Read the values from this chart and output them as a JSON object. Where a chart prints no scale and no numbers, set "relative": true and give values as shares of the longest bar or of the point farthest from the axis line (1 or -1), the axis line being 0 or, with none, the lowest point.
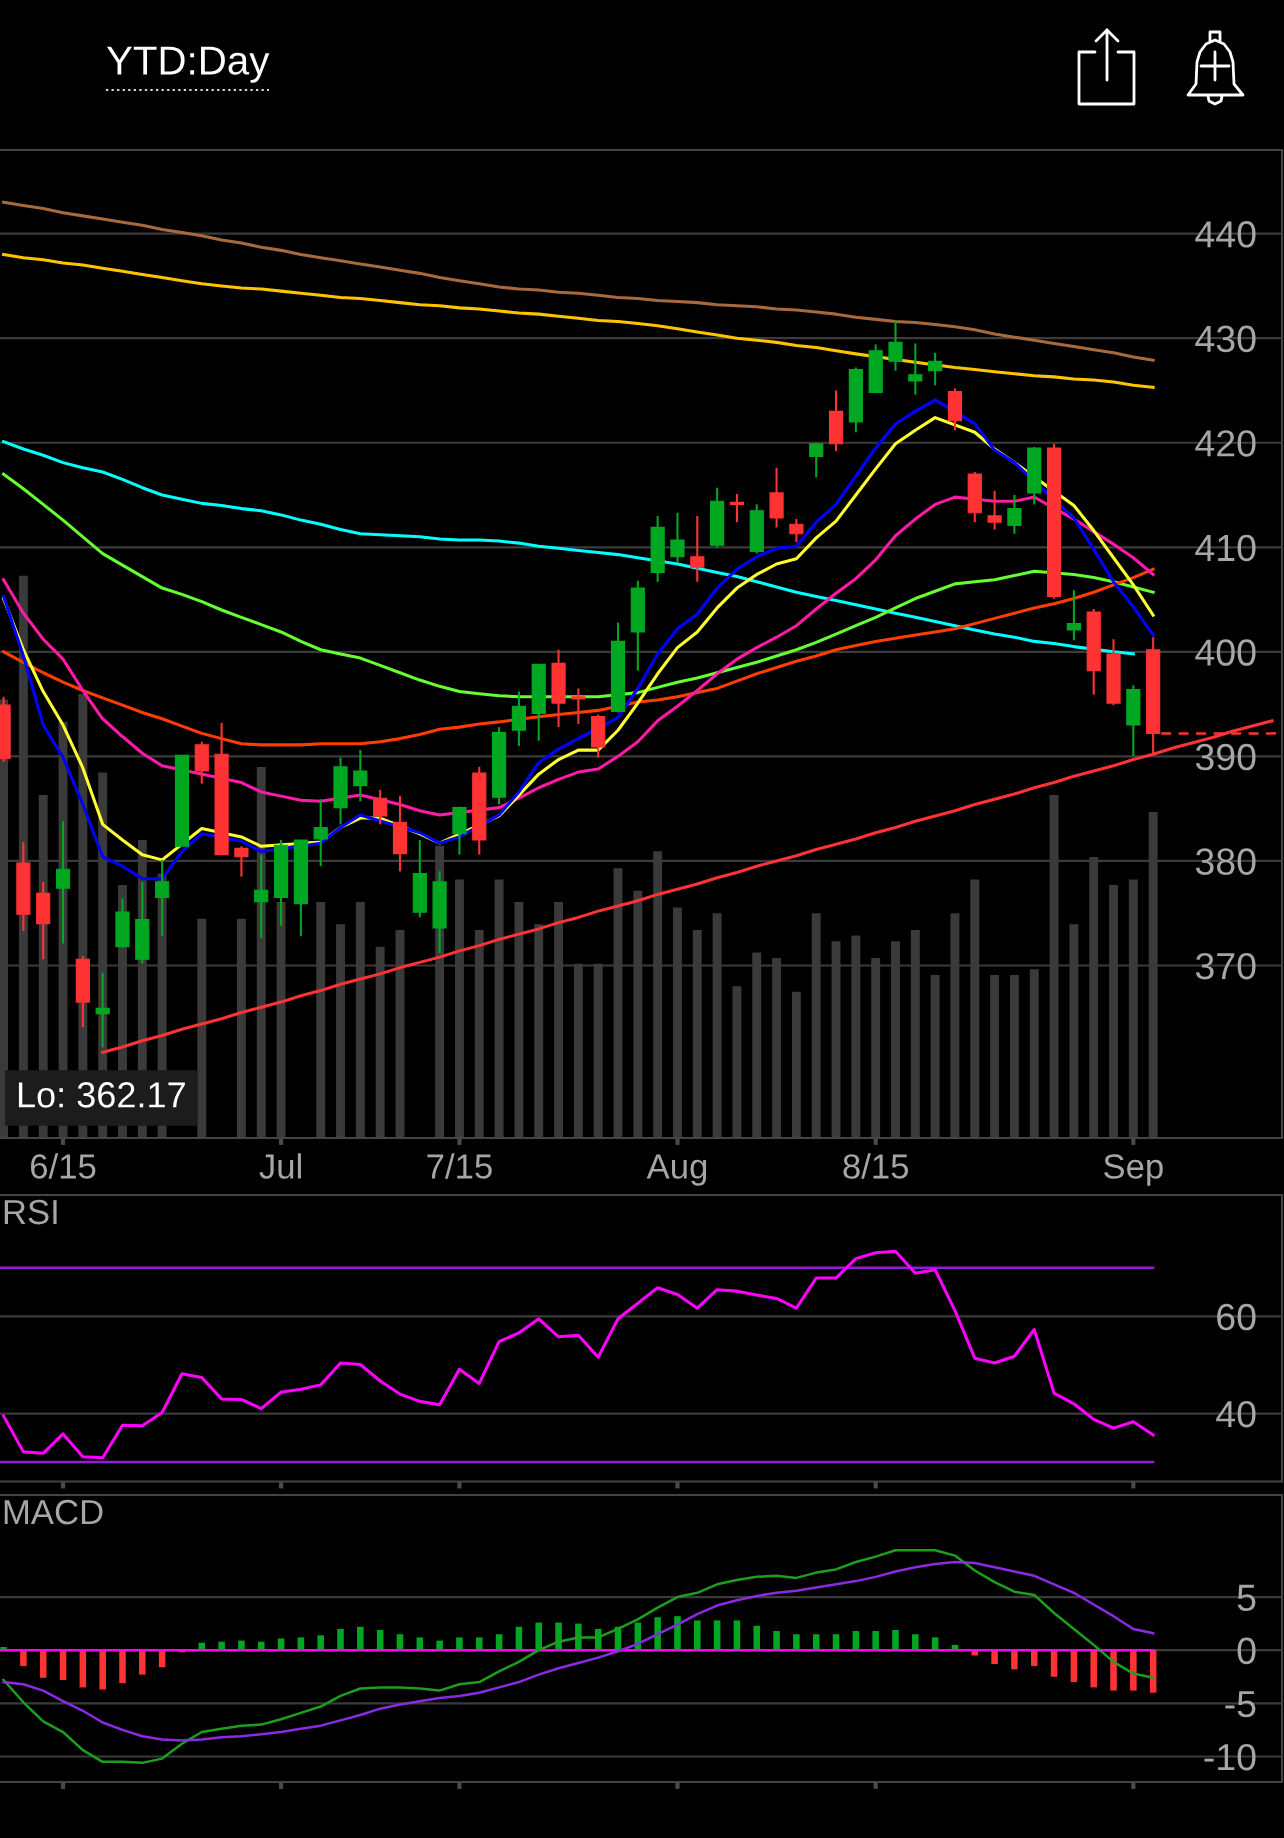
{
  "chart_data": [
    {
      "type": "candlestick",
      "title": "YTD:Day",
      "categories": [
        null,
        null,
        null,
        "6/15",
        null,
        null,
        null,
        null,
        null,
        null,
        null,
        null,
        null,
        null,
        "Jul",
        null,
        null,
        null,
        null,
        null,
        null,
        null,
        null,
        "7/15",
        null,
        null,
        null,
        null,
        null,
        null,
        null,
        null,
        null,
        null,
        "Aug",
        null,
        null,
        null,
        null,
        null,
        null,
        null,
        null,
        null,
        "8/15",
        null,
        null,
        null,
        null,
        null,
        null,
        null,
        null,
        null,
        null,
        null,
        null,
        "Sep",
        null,
        null,
        null,
        null,
        null,
        null,
        null
      ],
      "ohlc": [
        [
          394.9,
          395.7,
          389.5,
          389.8
        ],
        [
          379.8,
          381.8,
          373.3,
          374.9
        ],
        [
          376.9,
          378.0,
          370.6,
          374.0
        ],
        [
          377.4,
          383.8,
          372.1,
          379.2
        ],
        [
          370.6,
          370.9,
          364.1,
          366.5
        ],
        [
          365.4,
          369.3,
          362.17,
          365.9
        ],
        [
          371.8,
          376.4,
          371.7,
          375.1
        ],
        [
          370.6,
          378.0,
          370.2,
          374.4
        ],
        [
          376.5,
          380.1,
          372.8,
          378.0
        ],
        [
          381.4,
          390.1,
          381.4,
          390.1
        ],
        [
          391.1,
          391.4,
          387.4,
          388.6
        ],
        [
          390.2,
          393.2,
          380.6,
          380.6
        ],
        [
          381.2,
          381.4,
          378.5,
          380.4
        ],
        [
          376.1,
          380.6,
          372.6,
          377.2
        ],
        [
          376.5,
          382.0,
          373.8,
          381.5
        ],
        [
          375.9,
          382.0,
          372.8,
          382.0
        ],
        [
          382.1,
          385.9,
          379.5,
          383.2
        ],
        [
          385.1,
          389.9,
          383.5,
          389.0
        ],
        [
          387.2,
          390.6,
          385.7,
          388.6
        ],
        [
          386.0,
          386.8,
          383.5,
          384.3
        ],
        [
          383.7,
          386.2,
          379.0,
          380.7
        ],
        [
          375.1,
          382.0,
          374.6,
          378.8
        ],
        [
          373.6,
          379.0,
          371.2,
          378.0
        ],
        [
          382.6,
          385.2,
          380.6,
          385.1
        ],
        [
          388.4,
          389.0,
          380.6,
          382.0
        ],
        [
          386.1,
          392.8,
          385.4,
          392.3
        ],
        [
          392.5,
          396.2,
          391.0,
          394.8
        ],
        [
          394.1,
          398.8,
          391.5,
          398.8
        ],
        [
          398.9,
          400.2,
          392.8,
          395.1
        ],
        [
          395.7,
          396.5,
          393.1,
          395.5
        ],
        [
          393.8,
          394.0,
          389.9,
          390.9
        ],
        [
          394.3,
          402.8,
          394.2,
          401.0
        ],
        [
          401.9,
          406.8,
          398.2,
          406.1
        ],
        [
          407.6,
          413.0,
          406.7,
          411.9
        ],
        [
          409.1,
          413.3,
          408.5,
          410.7
        ],
        [
          409.1,
          413.0,
          406.7,
          408.1
        ],
        [
          410.2,
          415.7,
          410.0,
          414.4
        ],
        [
          414.3,
          415.1,
          412.4,
          414.1
        ],
        [
          409.6,
          414.1,
          409.4,
          413.5
        ],
        [
          415.2,
          417.6,
          411.9,
          412.8
        ],
        [
          412.2,
          412.7,
          410.5,
          411.3
        ],
        [
          418.7,
          420.0,
          416.7,
          419.9
        ],
        [
          423.0,
          425.0,
          419.2,
          419.9
        ],
        [
          422.0,
          427.2,
          421.0,
          427.0
        ],
        [
          424.8,
          429.4,
          424.8,
          428.8
        ],
        [
          427.8,
          431.7,
          426.9,
          429.6
        ],
        [
          425.9,
          429.5,
          424.6,
          426.5
        ],
        [
          426.9,
          428.6,
          425.5,
          427.8
        ],
        [
          424.9,
          425.2,
          421.2,
          422.1
        ],
        [
          417.0,
          417.2,
          412.4,
          413.3
        ],
        [
          413.0,
          415.4,
          411.7,
          412.4
        ],
        [
          412.1,
          415.0,
          411.3,
          413.7
        ],
        [
          415.2,
          419.6,
          414.1,
          419.5
        ],
        [
          419.5,
          419.9,
          405.1,
          405.3
        ],
        [
          402.1,
          405.9,
          401.1,
          402.7
        ],
        [
          403.8,
          404.1,
          395.9,
          398.2
        ],
        [
          399.8,
          401.2,
          394.9,
          395.1
        ],
        [
          393.0,
          396.8,
          390.0,
          396.4
        ],
        [
          400.2,
          401.4,
          390.3,
          392.2
        ],
        null,
        null,
        null,
        null,
        null,
        null
      ],
      "colors": [
        "#ff3333",
        "#ff3333",
        "#ff3333",
        "#00a822",
        "#ff3333",
        "#00a822",
        "#00a822",
        "#00a822",
        "#00a822",
        "#00a822",
        "#ff3333",
        "#ff3333",
        "#ff3333",
        "#00a822",
        "#00a822",
        "#00a822",
        "#00a822",
        "#00a822",
        "#00a822",
        "#ff3333",
        "#ff3333",
        "#00a822",
        "#00a822",
        "#00a822",
        "#ff3333",
        "#00a822",
        "#00a822",
        "#00a822",
        "#ff3333",
        "#ff3333",
        "#ff3333",
        "#00a822",
        "#00a822",
        "#00a822",
        "#00a822",
        "#ff3333",
        "#00a822",
        "#ff3333",
        "#00a822",
        "#ff3333",
        "#ff3333",
        "#00a822",
        "#ff3333",
        "#00a822",
        "#00a822",
        "#00a822",
        "#00a822",
        "#00a822",
        "#ff3333",
        "#ff3333",
        "#ff3333",
        "#00a822",
        "#00a822",
        "#ff3333",
        "#00a822",
        "#ff3333",
        "#ff3333",
        "#00a822",
        "#ff3333",
        null,
        null,
        null,
        null,
        null,
        null
      ],
      "series": [
        {
          "type": "line",
          "color": "#a86a3d",
          "values": [
            443.0,
            442.7,
            442.4,
            442.0,
            441.7,
            441.4,
            441.1,
            440.8,
            440.4,
            440.1,
            439.8,
            439.4,
            439.1,
            438.7,
            438.4,
            438.0,
            437.7,
            437.4,
            437.1,
            436.8,
            436.5,
            436.2,
            435.8,
            435.5,
            435.2,
            434.9,
            434.7,
            434.6,
            434.4,
            434.3,
            434.1,
            433.9,
            433.8,
            433.6,
            433.5,
            433.4,
            433.2,
            433.1,
            433.0,
            432.8,
            432.7,
            432.5,
            432.3,
            432.0,
            431.8,
            431.6,
            431.5,
            431.3,
            431.1,
            430.8,
            430.4,
            430.1,
            429.8,
            429.5,
            429.2,
            428.9,
            428.6,
            428.2,
            427.9,
            null,
            null,
            null,
            null,
            null,
            null
          ]
        },
        {
          "type": "line",
          "color": "#ffc400",
          "values": [
            438.0,
            437.7,
            437.5,
            437.2,
            437.0,
            436.7,
            436.4,
            436.1,
            435.8,
            435.5,
            435.2,
            435.0,
            434.8,
            434.7,
            434.5,
            434.3,
            434.1,
            433.9,
            433.8,
            433.6,
            433.4,
            433.2,
            433.1,
            432.9,
            432.8,
            432.6,
            432.4,
            432.3,
            432.1,
            431.9,
            431.7,
            431.6,
            431.4,
            431.2,
            430.9,
            430.6,
            430.3,
            430.0,
            429.8,
            429.6,
            429.3,
            429.1,
            428.8,
            428.5,
            null,
            null,
            427.7,
            null,
            427.2,
            427.0,
            426.8,
            426.6,
            426.4,
            426.3,
            426.1,
            426.0,
            425.8,
            425.5,
            425.3,
            null,
            null,
            null,
            null,
            null,
            null
          ]
        },
        {
          "type": "line",
          "color": "#00ffff",
          "values": [
            420.1,
            419.4,
            418.8,
            418.1,
            417.6,
            417.2,
            416.5,
            415.7,
            415.0,
            414.6,
            414.2,
            414.0,
            413.7,
            413.5,
            413.1,
            412.6,
            412.2,
            411.7,
            411.3,
            411.2,
            411.1,
            411.0,
            410.8,
            410.7,
            410.7,
            410.6,
            410.4,
            410.1,
            409.9,
            409.7,
            409.5,
            409.3,
            409.0,
            null,
            408.4,
            null,
            407.6,
            407.2,
            406.7,
            406.2,
            405.7,
            405.3,
            404.9,
            404.5,
            404.1,
            403.7,
            403.3,
            402.9,
            402.5,
            402.1,
            401.7,
            401.4,
            401.0,
            400.8,
            400.5,
            null,
            400.0,
            399.8,
            null,
            null,
            null,
            null,
            null,
            null,
            null
          ]
        },
        {
          "type": "line",
          "color": "#66ff33",
          "values": [
            417.0,
            415.6,
            414.1,
            412.6,
            411.0,
            409.4,
            408.3,
            407.2,
            406.1,
            405.5,
            404.8,
            404.0,
            403.3,
            402.6,
            401.9,
            401.0,
            400.2,
            399.8,
            399.4,
            398.7,
            398.0,
            397.3,
            396.7,
            396.2,
            396.0,
            395.8,
            395.7,
            null,
            null,
            null,
            395.7,
            null,
            396.1,
            396.6,
            397.1,
            397.5,
            398.0,
            398.5,
            399.0,
            399.6,
            400.2,
            400.9,
            401.7,
            402.5,
            403.3,
            404.2,
            405.1,
            405.8,
            406.5,
            406.7,
            406.9,
            407.3,
            407.7,
            null,
            407.4,
            407.1,
            406.7,
            406.2,
            405.7,
            null,
            null,
            null,
            null,
            null,
            null
          ]
        },
        {
          "type": "line",
          "color": "#ff3d00",
          "values": [
            400.0,
            399.0,
            398.0,
            397.1,
            396.3,
            395.6,
            394.9,
            394.2,
            393.6,
            392.9,
            392.2,
            391.7,
            391.2,
            391.1,
            391.1,
            391.1,
            391.2,
            391.2,
            391.2,
            391.4,
            391.7,
            392.1,
            392.6,
            392.8,
            393.1,
            393.3,
            null,
            393.8,
            394.0,
            394.2,
            394.4,
            null,
            395.2,
            395.4,
            395.7,
            396.1,
            396.5,
            397.2,
            397.9,
            398.5,
            399.1,
            399.6,
            400.2,
            400.6,
            401.0,
            401.3,
            401.6,
            401.9,
            402.2,
            402.7,
            403.2,
            403.7,
            404.2,
            404.6,
            405.1,
            405.7,
            406.4,
            407.1,
            407.9,
            null,
            null,
            null,
            null,
            null,
            null
          ]
        },
        {
          "type": "line",
          "color": "#ff1aa8",
          "values": [
            406.9,
            403.7,
            401.2,
            399.3,
            396.3,
            393.6,
            391.9,
            390.3,
            389.1,
            null,
            null,
            null,
            387.5,
            386.6,
            386.2,
            385.8,
            385.7,
            null,
            386.3,
            null,
            385.4,
            384.8,
            384.4,
            null,
            null,
            385.1,
            386.0,
            387.0,
            387.8,
            388.5,
            388.8,
            390.0,
            391.4,
            393.4,
            394.8,
            396.3,
            397.9,
            399.3,
            400.4,
            401.4,
            402.5,
            404.1,
            405.6,
            407.0,
            408.8,
            411.1,
            412.7,
            414.1,
            414.8,
            null,
            414.4,
            414.4,
            414.8,
            null,
            412.7,
            411.5,
            410.3,
            409.0,
            407.4,
            null,
            null,
            null,
            null,
            null,
            null
          ]
        },
        {
          "type": "line",
          "color": "#ffff33",
          "values": [
            405.1,
            400.2,
            396.2,
            393.0,
            388.9,
            383.5,
            382.0,
            380.6,
            380.1,
            null,
            383.1,
            null,
            382.3,
            381.4,
            null,
            null,
            381.8,
            383.2,
            384.1,
            384.1,
            null,
            382.6,
            381.7,
            null,
            null,
            384.3,
            386.3,
            388.3,
            389.7,
            390.6,
            390.6,
            392.5,
            395.1,
            397.9,
            400.4,
            401.9,
            404.2,
            406.1,
            407.4,
            408.4,
            408.9,
            410.9,
            412.5,
            415.0,
            417.5,
            419.9,
            421.2,
            422.4,
            null,
            421.0,
            419.4,
            418.1,
            null,
            null,
            414.0,
            411.6,
            409.0,
            406.4,
            403.5,
            null,
            null,
            null,
            null,
            null,
            null
          ]
        },
        {
          "type": "line",
          "color": "#0000ff",
          "values": [
            405.3,
            399.6,
            393.0,
            389.9,
            385.4,
            380.4,
            379.5,
            378.3,
            378.3,
            380.9,
            382.6,
            null,
            381.9,
            380.9,
            null,
            null,
            381.7,
            383.2,
            384.4,
            null,
            null,
            382.7,
            381.7,
            382.3,
            null,
            384.4,
            386.6,
            389.4,
            390.7,
            391.7,
            null,
            393.7,
            396.5,
            399.8,
            402.2,
            403.6,
            406.1,
            407.9,
            409.1,
            409.9,
            410.1,
            412.4,
            414.1,
            416.8,
            419.5,
            421.8,
            423.0,
            424.1,
            null,
            421.8,
            419.3,
            418.1,
            null,
            null,
            412.8,
            409.8,
            406.7,
            404.3,
            401.6,
            null,
            null,
            null,
            null,
            null,
            null
          ]
        },
        {
          "type": "line",
          "color": "#ff3333",
          "values": [
            null,
            null,
            null,
            null,
            null,
            361.7,
            362.2,
            362.8,
            363.3,
            363.9,
            364.4,
            364.9,
            365.5,
            366.0,
            366.5,
            367.1,
            367.6,
            368.2,
            368.7,
            369.2,
            369.8,
            370.3,
            370.8,
            371.4,
            371.9,
            372.5,
            373.0,
            373.5,
            374.1,
            374.6,
            375.2,
            375.7,
            376.2,
            376.8,
            377.3,
            377.8,
            378.4,
            378.9,
            379.5,
            380.0,
            380.5,
            381.1,
            381.6,
            382.1,
            382.7,
            383.2,
            383.8,
            384.3,
            384.8,
            385.4,
            385.9,
            386.4,
            387.0,
            387.5,
            388.1,
            388.6,
            389.1,
            389.7,
            390.2,
            390.8,
            391.3,
            391.8,
            392.4,
            392.9,
            393.4
          ]
        }
      ],
      "ylim": [
        353.5,
        448
      ],
      "yticks": [
        370,
        380,
        390,
        400,
        410,
        420,
        430,
        440
      ],
      "grid": "y",
      "annotations": [
        "Lo: 362.17"
      ],
      "ref_lines": [
        {
          "axis": "y",
          "value": 392.2,
          "color": "#ff3333",
          "line_style": "dashed"
        }
      ]
    },
    {
      "type": "bar",
      "relative": true,
      "color": "#3a3a3a",
      "categories": [
        null,
        null,
        null,
        null,
        null,
        null,
        null,
        null,
        null,
        null,
        null,
        null,
        null,
        null,
        null,
        null,
        null,
        null,
        null,
        null,
        null,
        null,
        null,
        null,
        null,
        null,
        null,
        null,
        null,
        null,
        null,
        null,
        null,
        null,
        null,
        null,
        null,
        null,
        null,
        null,
        null,
        null,
        null,
        null,
        null,
        null,
        null,
        null,
        null,
        null,
        null,
        null,
        null,
        null,
        null,
        null,
        null,
        null,
        null,
        null,
        null,
        null,
        null,
        null,
        null
      ],
      "values": [
        0.78,
        1.0,
        0.61,
        0.74,
        0.79,
        0.65,
        0.45,
        0.53,
        0.47,
        null,
        0.39,
        null,
        0.39,
        0.66,
        0.42,
        null,
        0.42,
        0.38,
        0.42,
        0.34,
        0.37,
        null,
        0.52,
        0.46,
        0.37,
        0.46,
        0.42,
        0.38,
        0.42,
        0.31,
        0.31,
        0.48,
        0.44,
        0.51,
        0.41,
        0.37,
        0.4,
        0.27,
        0.33,
        0.32,
        0.26,
        0.4,
        0.35,
        0.36,
        0.32,
        0.35,
        0.37,
        0.29,
        0.4,
        0.46,
        0.29,
        0.29,
        0.3,
        0.61,
        0.38,
        0.5,
        0.45,
        0.46,
        0.58,
        null,
        null,
        null,
        null,
        null,
        null
      ]
    },
    {
      "type": "line",
      "title": "RSI",
      "color": "#ff00ff",
      "categories": [
        null,
        null,
        null,
        null,
        null,
        null,
        null,
        null,
        null,
        null,
        null,
        null,
        null,
        null,
        null,
        null,
        null,
        null,
        null,
        null,
        null,
        null,
        null,
        null,
        null,
        null,
        null,
        null,
        null,
        null,
        null,
        null,
        null,
        null,
        null,
        null,
        null,
        null,
        null,
        null,
        null,
        null,
        null,
        null,
        null,
        null,
        null,
        null,
        null,
        null,
        null,
        null,
        null,
        null,
        null,
        null,
        null,
        null,
        null,
        null,
        null,
        null,
        null,
        null,
        null
      ],
      "values": [
        39.5,
        32.1,
        31.8,
        35.8,
        31.1,
        30.9,
        37.6,
        37.5,
        40.2,
        48.2,
        47.4,
        43.0,
        42.9,
        41.0,
        44.4,
        45.0,
        45.9,
        50.4,
        50.1,
        46.7,
        44.0,
        42.5,
        41.8,
        49.1,
        46.2,
        54.8,
        56.6,
        59.5,
        55.8,
        56.1,
        51.6,
        59.5,
        62.7,
        65.9,
        64.5,
        61.7,
        65.5,
        65.2,
        64.4,
        63.7,
        61.7,
        67.9,
        67.9,
        71.9,
        73.1,
        73.4,
        68.9,
        69.6,
        61.2,
        51.4,
        50.4,
        51.8,
        57.3,
        44.2,
        42.0,
        38.8,
        37.0,
        38.3,
        35.6,
        null,
        null,
        null,
        null,
        null,
        null
      ],
      "ylim": [
        26,
        85
      ],
      "yticks": [
        40,
        60
      ],
      "grid": "y",
      "ref_lines": [
        {
          "axis": "y",
          "value": 70,
          "color": "#8c1fd9"
        },
        {
          "axis": "y",
          "value": 30,
          "color": "#8c1fd9"
        }
      ]
    },
    {
      "type": "line",
      "title": "MACD",
      "categories": [
        null,
        null,
        null,
        null,
        null,
        null,
        null,
        null,
        null,
        null,
        null,
        null,
        null,
        null,
        null,
        null,
        null,
        null,
        null,
        null,
        null,
        null,
        null,
        null,
        null,
        null,
        null,
        null,
        null,
        null,
        null,
        null,
        null,
        null,
        null,
        null,
        null,
        null,
        null,
        null,
        null,
        null,
        null,
        null,
        null,
        null,
        null,
        null,
        null,
        null,
        null,
        null,
        null,
        null,
        null,
        null,
        null,
        null,
        null,
        null,
        null,
        null,
        null,
        null,
        null
      ],
      "series": [
        {
          "type": "bar",
          "values": [
            0.3,
            -1.5,
            -2.6,
            -2.8,
            -3.5,
            -3.7,
            -3.1,
            -2.3,
            -1.6,
            -0.2,
            0.7,
            0.8,
            0.9,
            0.8,
            1.1,
            1.2,
            1.4,
            2.0,
            2.2,
            1.9,
            1.5,
            1.2,
            0.9,
            1.2,
            1.2,
            1.5,
            2.2,
            2.6,
            2.6,
            2.5,
            2.0,
            2.2,
            2.6,
            3.1,
            3.2,
            2.8,
            2.8,
            2.8,
            2.3,
            1.8,
            1.5,
            1.5,
            1.5,
            1.8,
            1.8,
            1.9,
            1.5,
            1.2,
            0.5,
            -0.5,
            -1.3,
            -1.8,
            -1.5,
            -2.5,
            -3.0,
            -3.5,
            -3.8,
            -3.8,
            -4.0,
            null,
            null,
            null,
            null,
            null,
            null
          ],
          "colors": [
            "#00a822",
            "#ff3333",
            "#ff3333",
            "#ff3333",
            "#ff3333",
            "#ff3333",
            "#ff3333",
            "#ff3333",
            "#ff3333",
            "#ff3333",
            "#00a822",
            "#00a822",
            "#00a822",
            "#00a822",
            "#00a822",
            "#00a822",
            "#00a822",
            "#00a822",
            "#00a822",
            "#00a822",
            "#00a822",
            "#00a822",
            "#00a822",
            "#00a822",
            "#00a822",
            "#00a822",
            "#00a822",
            "#00a822",
            "#00a822",
            "#00a822",
            "#00a822",
            "#00a822",
            "#00a822",
            "#00a822",
            "#00a822",
            "#00a822",
            "#00a822",
            "#00a822",
            "#00a822",
            "#00a822",
            "#00a822",
            "#00a822",
            "#00a822",
            "#00a822",
            "#00a822",
            "#00a822",
            "#00a822",
            "#00a822",
            "#00a822",
            "#ff3333",
            "#ff3333",
            "#ff3333",
            "#ff3333",
            "#ff3333",
            "#ff3333",
            "#ff3333",
            "#ff3333",
            "#ff3333",
            "#ff3333",
            null,
            null,
            null,
            null,
            null,
            null
          ]
        },
        {
          "type": "line",
          "color": "#1e9e1e",
          "values": [
            -2.8,
            -4.9,
            -6.7,
            -7.7,
            -9.4,
            -10.5,
            -10.5,
            -10.6,
            -10.2,
            -8.8,
            -7.7,
            -7.4,
            -7.1,
            -7.0,
            -6.5,
            -5.9,
            -5.3,
            -4.3,
            -3.6,
            -3.5,
            -3.5,
            -3.6,
            -3.8,
            -3.2,
            -3.0,
            -2.0,
            -1.1,
            0.0,
            0.8,
            1.2,
            1.2,
            2.0,
            2.9,
            4.0,
            5.0,
            5.4,
            6.2,
            6.6,
            6.9,
            7.0,
            6.8,
            7.3,
            7.6,
            8.3,
            8.8,
            9.4,
            9.4,
            9.4,
            8.9,
            7.5,
            6.4,
            5.5,
            5.2,
            3.5,
            2.0,
            0.5,
            -1.1,
            -2.2,
            -2.6,
            null,
            null,
            null,
            null,
            null,
            null
          ]
        },
        {
          "type": "line",
          "color": "#8a2be2",
          "values": [
            -3.0,
            -3.2,
            -3.8,
            -4.8,
            -5.7,
            -6.8,
            -7.5,
            -8.1,
            -8.4,
            -8.5,
            -8.4,
            -8.2,
            -8.1,
            -7.9,
            -7.7,
            -7.4,
            -7.1,
            -6.6,
            -6.1,
            -5.5,
            -5.1,
            -4.8,
            -4.5,
            -4.3,
            -4.0,
            -3.5,
            -3.0,
            -2.3,
            -1.7,
            -1.2,
            -0.7,
            -0.1,
            0.6,
            1.5,
            2.4,
            3.4,
            4.2,
            4.7,
            5.1,
            5.4,
            5.6,
            5.9,
            6.2,
            6.5,
            6.9,
            7.4,
            7.8,
            8.1,
            8.3,
            8.2,
            7.8,
            7.4,
            7.0,
            6.2,
            5.4,
            4.3,
            3.2,
            2.0,
            1.6,
            null,
            null,
            null,
            null,
            null,
            null
          ]
        }
      ],
      "ylim": [
        -12.4,
        14.6
      ],
      "yticks": [
        -10,
        -5,
        0,
        5
      ],
      "grid": "y",
      "ref_lines": [
        {
          "axis": "y",
          "value": 0,
          "color": "#ff00ff"
        }
      ]
    }
  ]
}
